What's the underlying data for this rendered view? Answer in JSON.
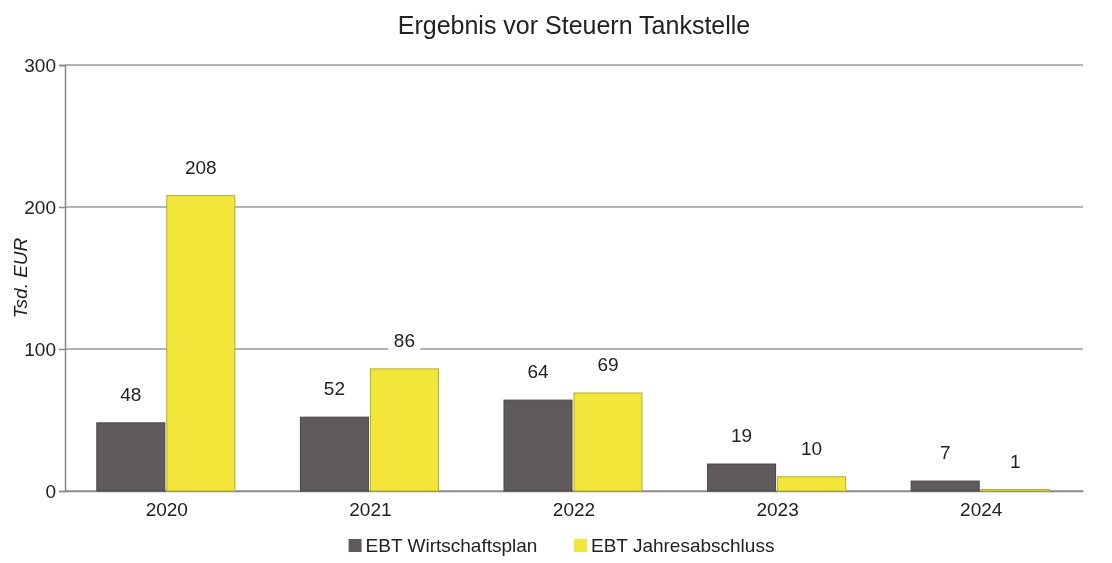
{
  "chart_data": {
    "type": "bar",
    "title": "Ergebnis vor Steuern Tankstelle",
    "ylabel": "Tsd. EUR",
    "categories": [
      "2020",
      "2021",
      "2022",
      "2023",
      "2024"
    ],
    "series": [
      {
        "name": "EBT Wirtschaftsplan",
        "color": "#5f5b5b",
        "values": [
          48,
          52,
          64,
          19,
          7
        ]
      },
      {
        "name": "EBT Jahresabschluss",
        "color": "#f2e63a",
        "values": [
          208,
          86,
          69,
          10,
          1
        ]
      }
    ],
    "ylim": [
      0,
      300
    ],
    "yticks": [
      0,
      100,
      200,
      300
    ],
    "grid": "y",
    "legend": "bottom",
    "data_labels": true
  }
}
